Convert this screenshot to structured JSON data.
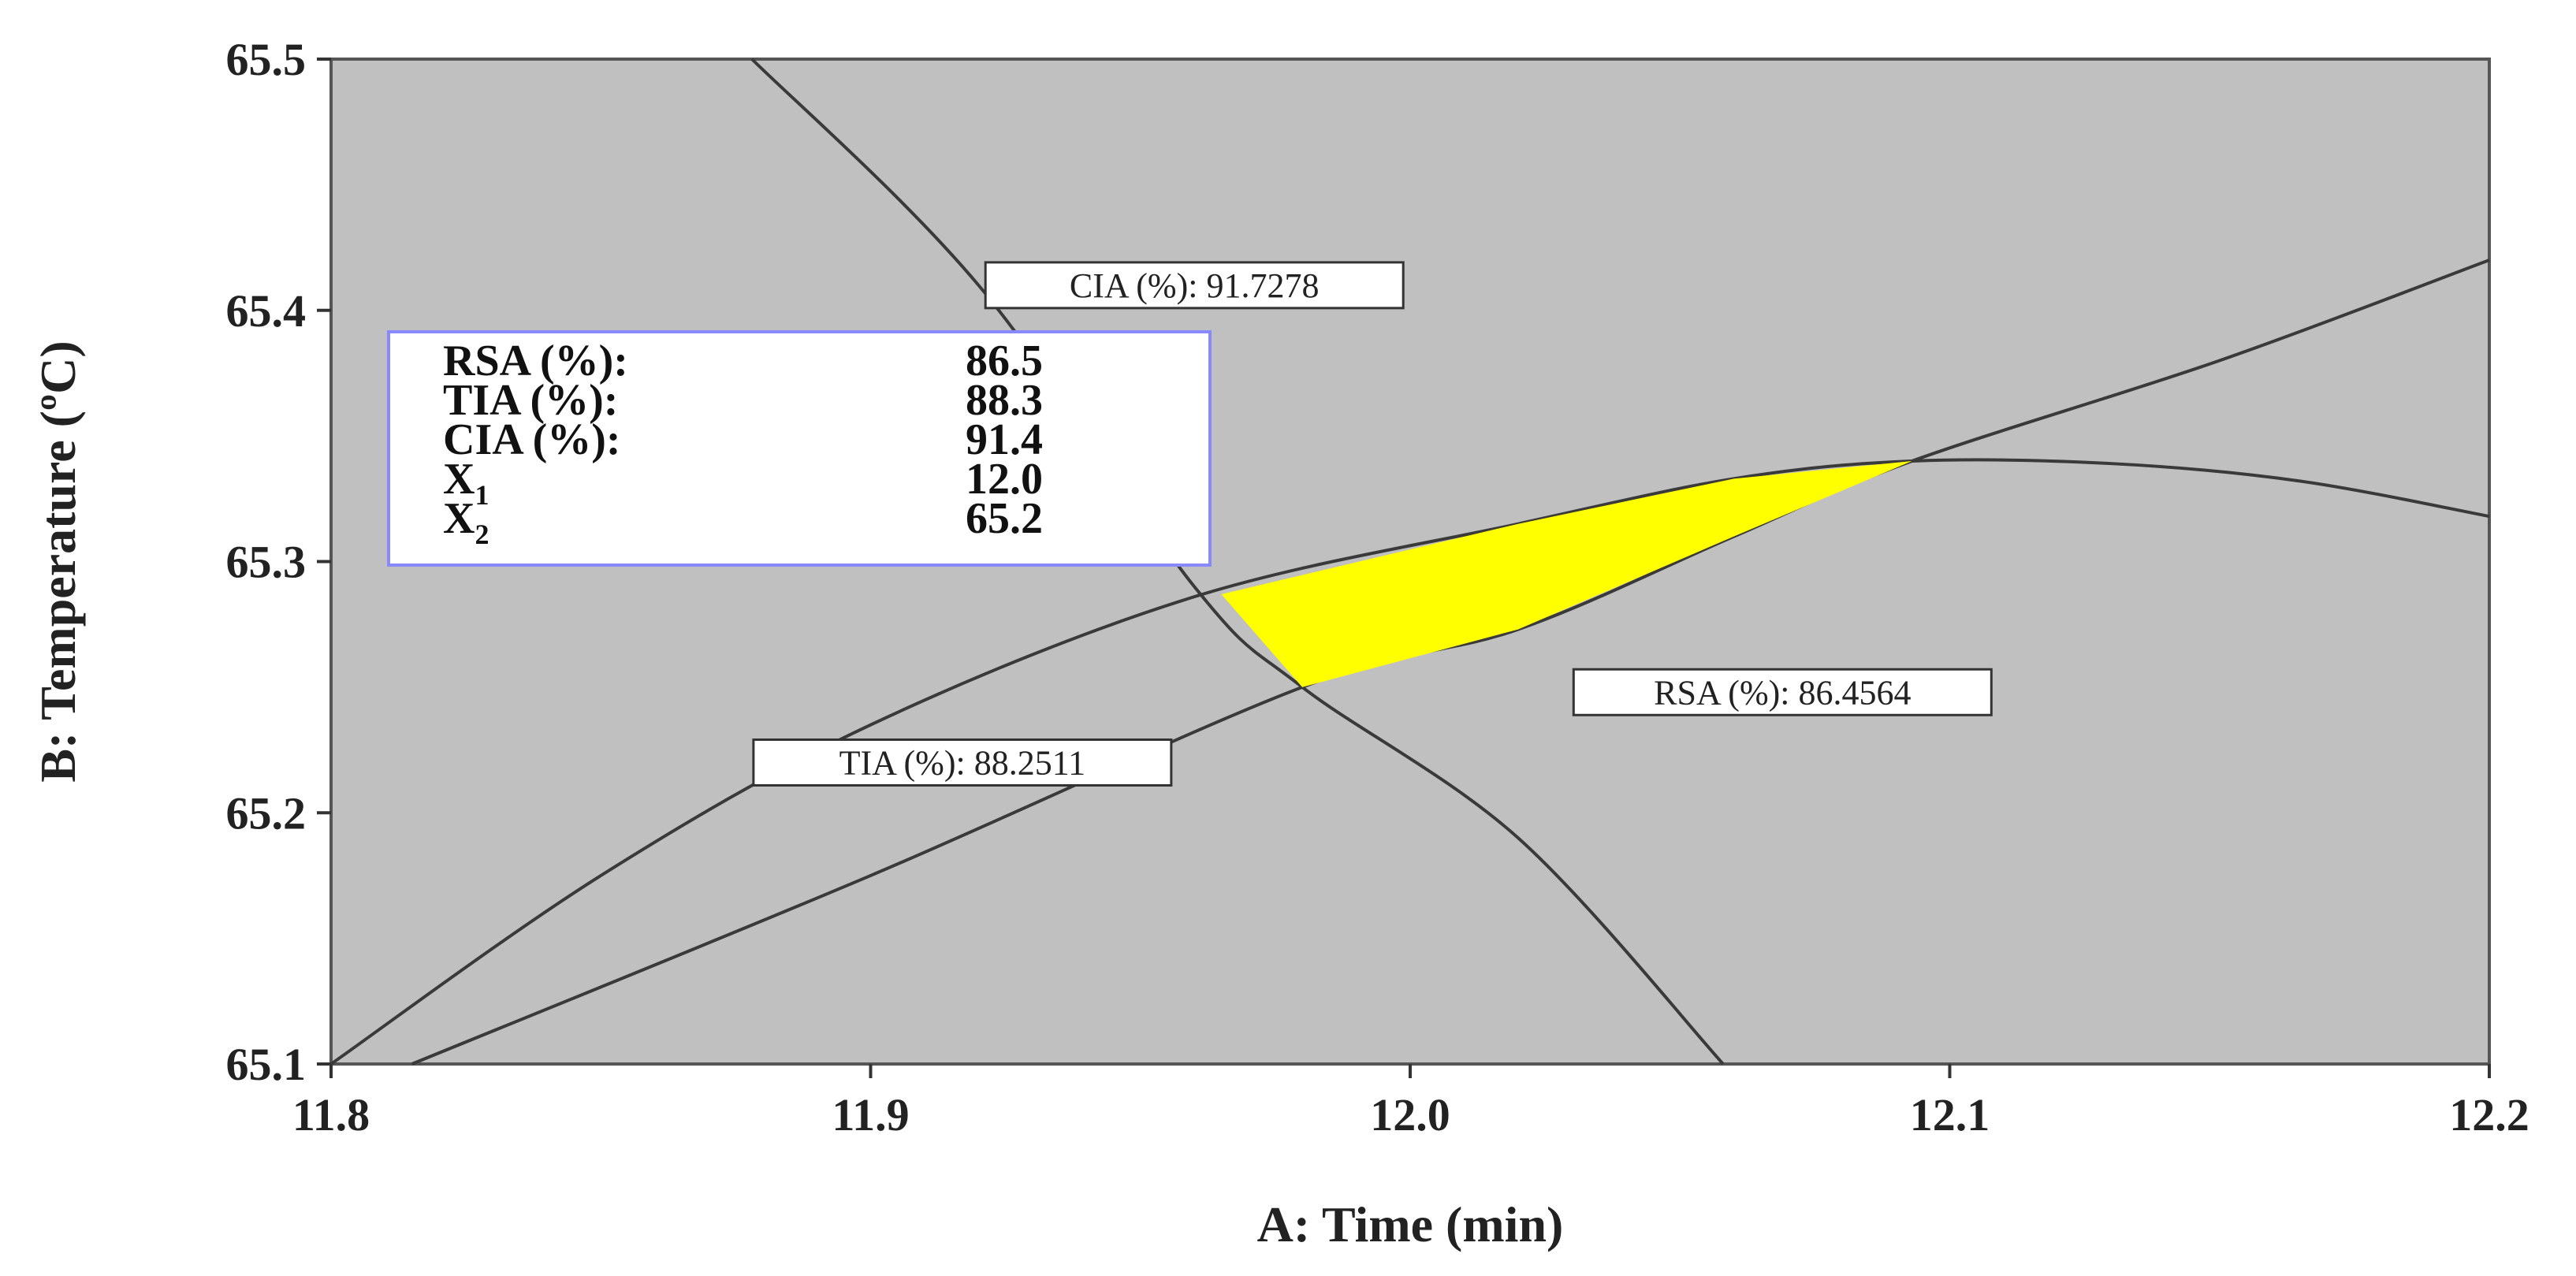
{
  "chart_data": {
    "type": "contour",
    "xlabel": "A: Time (min)",
    "ylabel": "B: Temperature (ºC)",
    "xlim": [
      11.8,
      12.2
    ],
    "ylim": [
      65.1,
      65.5
    ],
    "xticks": [
      "11.8",
      "11.9",
      "12.0",
      "12.1",
      "12.2"
    ],
    "yticks": [
      "65.1",
      "65.2",
      "65.3",
      "65.4",
      "65.5"
    ],
    "grid": false,
    "background_color": "#c0c0c0",
    "contours": [
      {
        "label": "CIA (%): 91.7278",
        "label_anchor": [
          11.96,
          65.41
        ],
        "points": [
          [
            11.878,
            65.5
          ],
          [
            11.92,
            65.41
          ],
          [
            11.96,
            65.29
          ],
          [
            11.98,
            65.25
          ],
          [
            12.02,
            65.19
          ],
          [
            12.058,
            65.1
          ]
        ]
      },
      {
        "label": "TIA (%): 88.2511",
        "label_anchor": [
          11.917,
          65.22
        ],
        "points": [
          [
            11.8,
            65.1
          ],
          [
            11.85,
            65.175
          ],
          [
            11.9,
            65.235
          ],
          [
            11.96,
            65.286
          ],
          [
            12.02,
            65.315
          ],
          [
            12.06,
            65.333
          ],
          [
            12.093,
            65.34
          ],
          [
            12.13,
            65.339
          ],
          [
            12.165,
            65.332
          ],
          [
            12.2,
            65.318
          ]
        ]
      },
      {
        "label": "RSA (%): 86.4564",
        "label_anchor": [
          12.069,
          65.248
        ],
        "points": [
          [
            11.815,
            65.1
          ],
          [
            11.9,
            65.175
          ],
          [
            11.98,
            65.25
          ],
          [
            12.02,
            65.273
          ],
          [
            12.06,
            65.31
          ],
          [
            12.093,
            65.34
          ],
          [
            12.15,
            65.38
          ],
          [
            12.2,
            65.42
          ]
        ]
      }
    ],
    "feasible_region": {
      "color": "#ffff00",
      "points": [
        [
          11.965,
          65.287
        ],
        [
          12.02,
          65.315
        ],
        [
          12.06,
          65.333
        ],
        [
          12.093,
          65.34
        ],
        [
          12.06,
          65.31
        ],
        [
          12.02,
          65.273
        ],
        [
          11.98,
          65.25
        ]
      ]
    },
    "flag": {
      "color": "#8888ff",
      "rows": [
        {
          "label": "RSA (%):",
          "value": "86.5"
        },
        {
          "label": "TIA (%):",
          "value": "88.3"
        },
        {
          "label": "CIA (%):",
          "value": "91.4"
        },
        {
          "label": "X",
          "sub": "1",
          "value": "12.0"
        },
        {
          "label": "X",
          "sub": "2",
          "value": "65.2"
        }
      ]
    }
  }
}
